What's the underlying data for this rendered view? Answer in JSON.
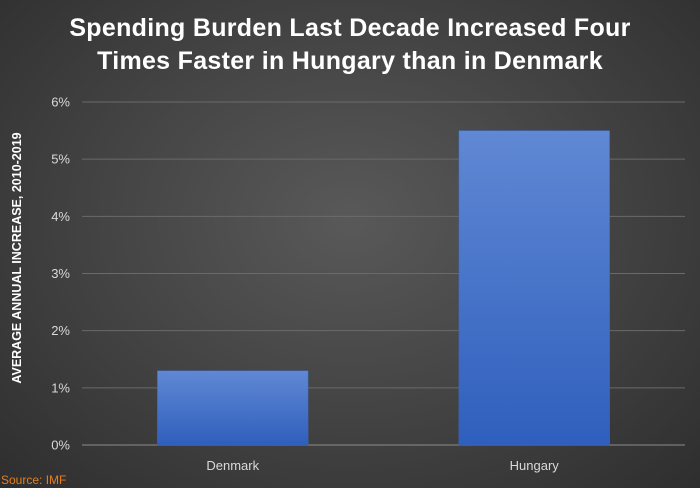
{
  "chart_data": {
    "type": "bar",
    "title_lines": [
      "Spending Burden Last Decade Increased Four",
      "Times Faster in Hungary than in Denmark"
    ],
    "ylabel": "AVERAGE ANNUAL INCREASE, 2010-2019",
    "xlabel": "",
    "categories": [
      "Denmark",
      "Hungary"
    ],
    "values": [
      1.3,
      5.5
    ],
    "ylim": [
      0,
      6
    ],
    "yticks": [
      0,
      1,
      2,
      3,
      4,
      5,
      6
    ],
    "ytick_labels": [
      "0%",
      "1%",
      "2%",
      "3%",
      "4%",
      "5%",
      "6%"
    ],
    "grid": true,
    "bar_color": "#4472c4",
    "source": "Source: IMF"
  }
}
